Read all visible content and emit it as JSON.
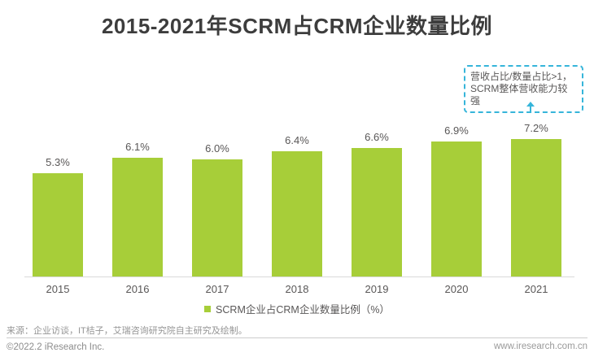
{
  "title": "2015-2021年SCRM占CRM企业数量比例",
  "annotation": {
    "line1": "营收占比/数量占比>1，",
    "line2": "SCRM整体营收能力较强",
    "border_color": "#36b5da",
    "arrow_color": "#36b5da"
  },
  "chart_data": {
    "type": "bar",
    "title": "2015-2021年SCRM占CRM企业数量比例",
    "categories": [
      "2015",
      "2016",
      "2017",
      "2018",
      "2019",
      "2020",
      "2021"
    ],
    "values": [
      5.3,
      6.1,
      6.0,
      6.4,
      6.6,
      6.9,
      7.2
    ],
    "labels": [
      "5.3%",
      "6.1%",
      "6.0%",
      "6.4%",
      "6.6%",
      "6.9%",
      "7.2%"
    ],
    "unit": "%",
    "ylim": [
      0,
      7.5
    ],
    "grid": false,
    "legend_position": "bottom-center",
    "legend": "SCRM企业占CRM企业数量比例（%）",
    "bar_color": "#a7ce39",
    "axis_line_color": "#d9d9d9",
    "label_color": "#595757"
  },
  "legend": {
    "label": "SCRM企业占CRM企业数量比例（%）",
    "swatch_color": "#a7ce39"
  },
  "footer": {
    "source": "来源：企业访谈，IT桔子，艾瑞咨询研究院自主研究及绘制。",
    "copyright": "©2022.2 iResearch Inc.",
    "website": "www.iresearch.com.cn"
  }
}
